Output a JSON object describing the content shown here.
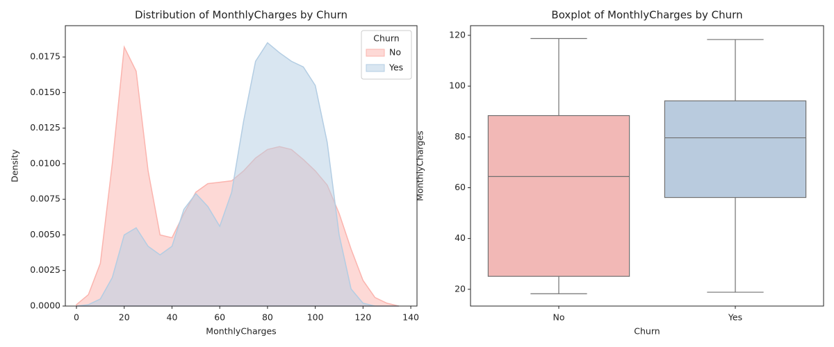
{
  "chart_data": [
    {
      "type": "area",
      "title": "Distribution of MonthlyCharges by Churn",
      "x_label": "MonthlyCharges",
      "y_label": "Density",
      "x": [
        0,
        5,
        10,
        15,
        20,
        25,
        30,
        35,
        40,
        45,
        50,
        55,
        60,
        65,
        70,
        75,
        80,
        85,
        90,
        95,
        100,
        105,
        110,
        115,
        120,
        125,
        130,
        135
      ],
      "series": [
        {
          "name": "No",
          "color": "#fbb4ae",
          "values": [
            0.0001,
            0.0008,
            0.003,
            0.01,
            0.0182,
            0.0165,
            0.0095,
            0.005,
            0.0048,
            0.0065,
            0.008,
            0.0086,
            0.0087,
            0.0088,
            0.0095,
            0.0104,
            0.011,
            0.0112,
            0.011,
            0.0103,
            0.0095,
            0.0085,
            0.0065,
            0.004,
            0.0018,
            0.0006,
            0.0002,
            0.0
          ]
        },
        {
          "name": "Yes",
          "color": "#b3cde3",
          "values": [
            0.0,
            0.0001,
            0.0005,
            0.002,
            0.005,
            0.0055,
            0.0042,
            0.0036,
            0.0042,
            0.0068,
            0.0079,
            0.007,
            0.0056,
            0.008,
            0.013,
            0.0172,
            0.0185,
            0.0178,
            0.0172,
            0.0168,
            0.0155,
            0.0115,
            0.005,
            0.0012,
            0.0002,
            0.0,
            0.0,
            0.0
          ]
        }
      ],
      "legend_title": "Churn",
      "legend_position": "upper right",
      "xlim": [
        -4.66,
        142.6
      ],
      "xticks": [
        0,
        20,
        40,
        60,
        80,
        100,
        120,
        140
      ],
      "ylim": [
        0,
        0.0197
      ],
      "yticks": [
        {
          "value": 0,
          "label": "0.0000"
        },
        {
          "value": 0.0025,
          "label": "0.0025"
        },
        {
          "value": 0.005,
          "label": "0.0050"
        },
        {
          "value": 0.0075,
          "label": "0.0075"
        },
        {
          "value": 0.01,
          "label": "0.0100"
        },
        {
          "value": 0.0125,
          "label": "0.0125"
        },
        {
          "value": 0.015,
          "label": "0.0150"
        },
        {
          "value": 0.0175,
          "label": "0.0175"
        }
      ]
    },
    {
      "type": "box",
      "title": "Boxplot of MonthlyCharges by Churn",
      "x_label": "Churn",
      "y_label": "MonthlyCharges",
      "categories": [
        "No",
        "Yes"
      ],
      "colors": [
        "#f2b8b6",
        "#b9cbde"
      ],
      "boxes": [
        {
          "min": 18.25,
          "q1": 25.1,
          "median": 64.4,
          "q3": 88.4,
          "max": 118.75
        },
        {
          "min": 18.85,
          "q1": 56.15,
          "median": 79.65,
          "q3": 94.2,
          "max": 118.35
        }
      ],
      "ylim": [
        13.4,
        123.8
      ],
      "yticks": [
        20,
        40,
        60,
        80,
        100,
        120
      ]
    }
  ]
}
